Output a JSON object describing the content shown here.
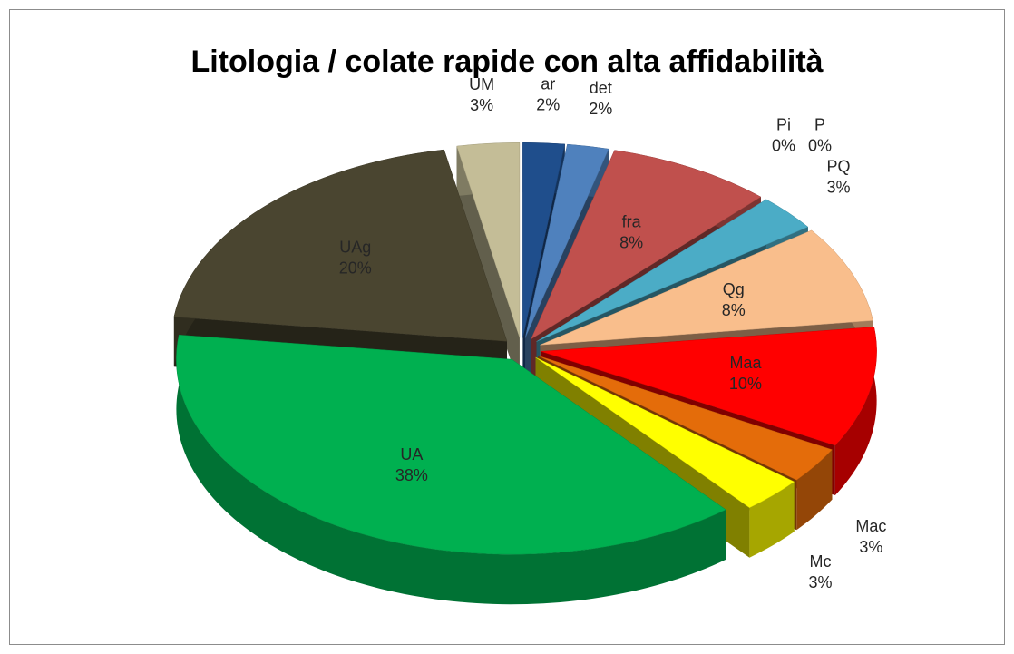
{
  "chart_data": {
    "type": "pie",
    "title": "Litologia / colate rapide con alta affidabilità",
    "categories": [
      "ar",
      "det",
      "fra",
      "P",
      "Pi",
      "PQ",
      "Qg",
      "Maa",
      "Mac",
      "Mc",
      "UA",
      "UAg",
      "UM"
    ],
    "values": [
      2,
      2,
      8,
      0,
      0,
      3,
      8,
      10,
      3,
      3,
      38,
      20,
      3
    ],
    "value_labels": [
      "2%",
      "2%",
      "8%",
      "0%",
      "0%",
      "3%",
      "8%",
      "10%",
      "3%",
      "3%",
      "38%",
      "20%",
      "3%"
    ],
    "colors": [
      "#1f4e8c",
      "#4f81bd",
      "#c0504d",
      "#2c7c9c",
      "#4bacc6",
      "#4bacc6",
      "#f9be8c",
      "#ff0000",
      "#e46c0a",
      "#ffff00",
      "#00b050",
      "#4a4530",
      "#c4bd97"
    ]
  }
}
